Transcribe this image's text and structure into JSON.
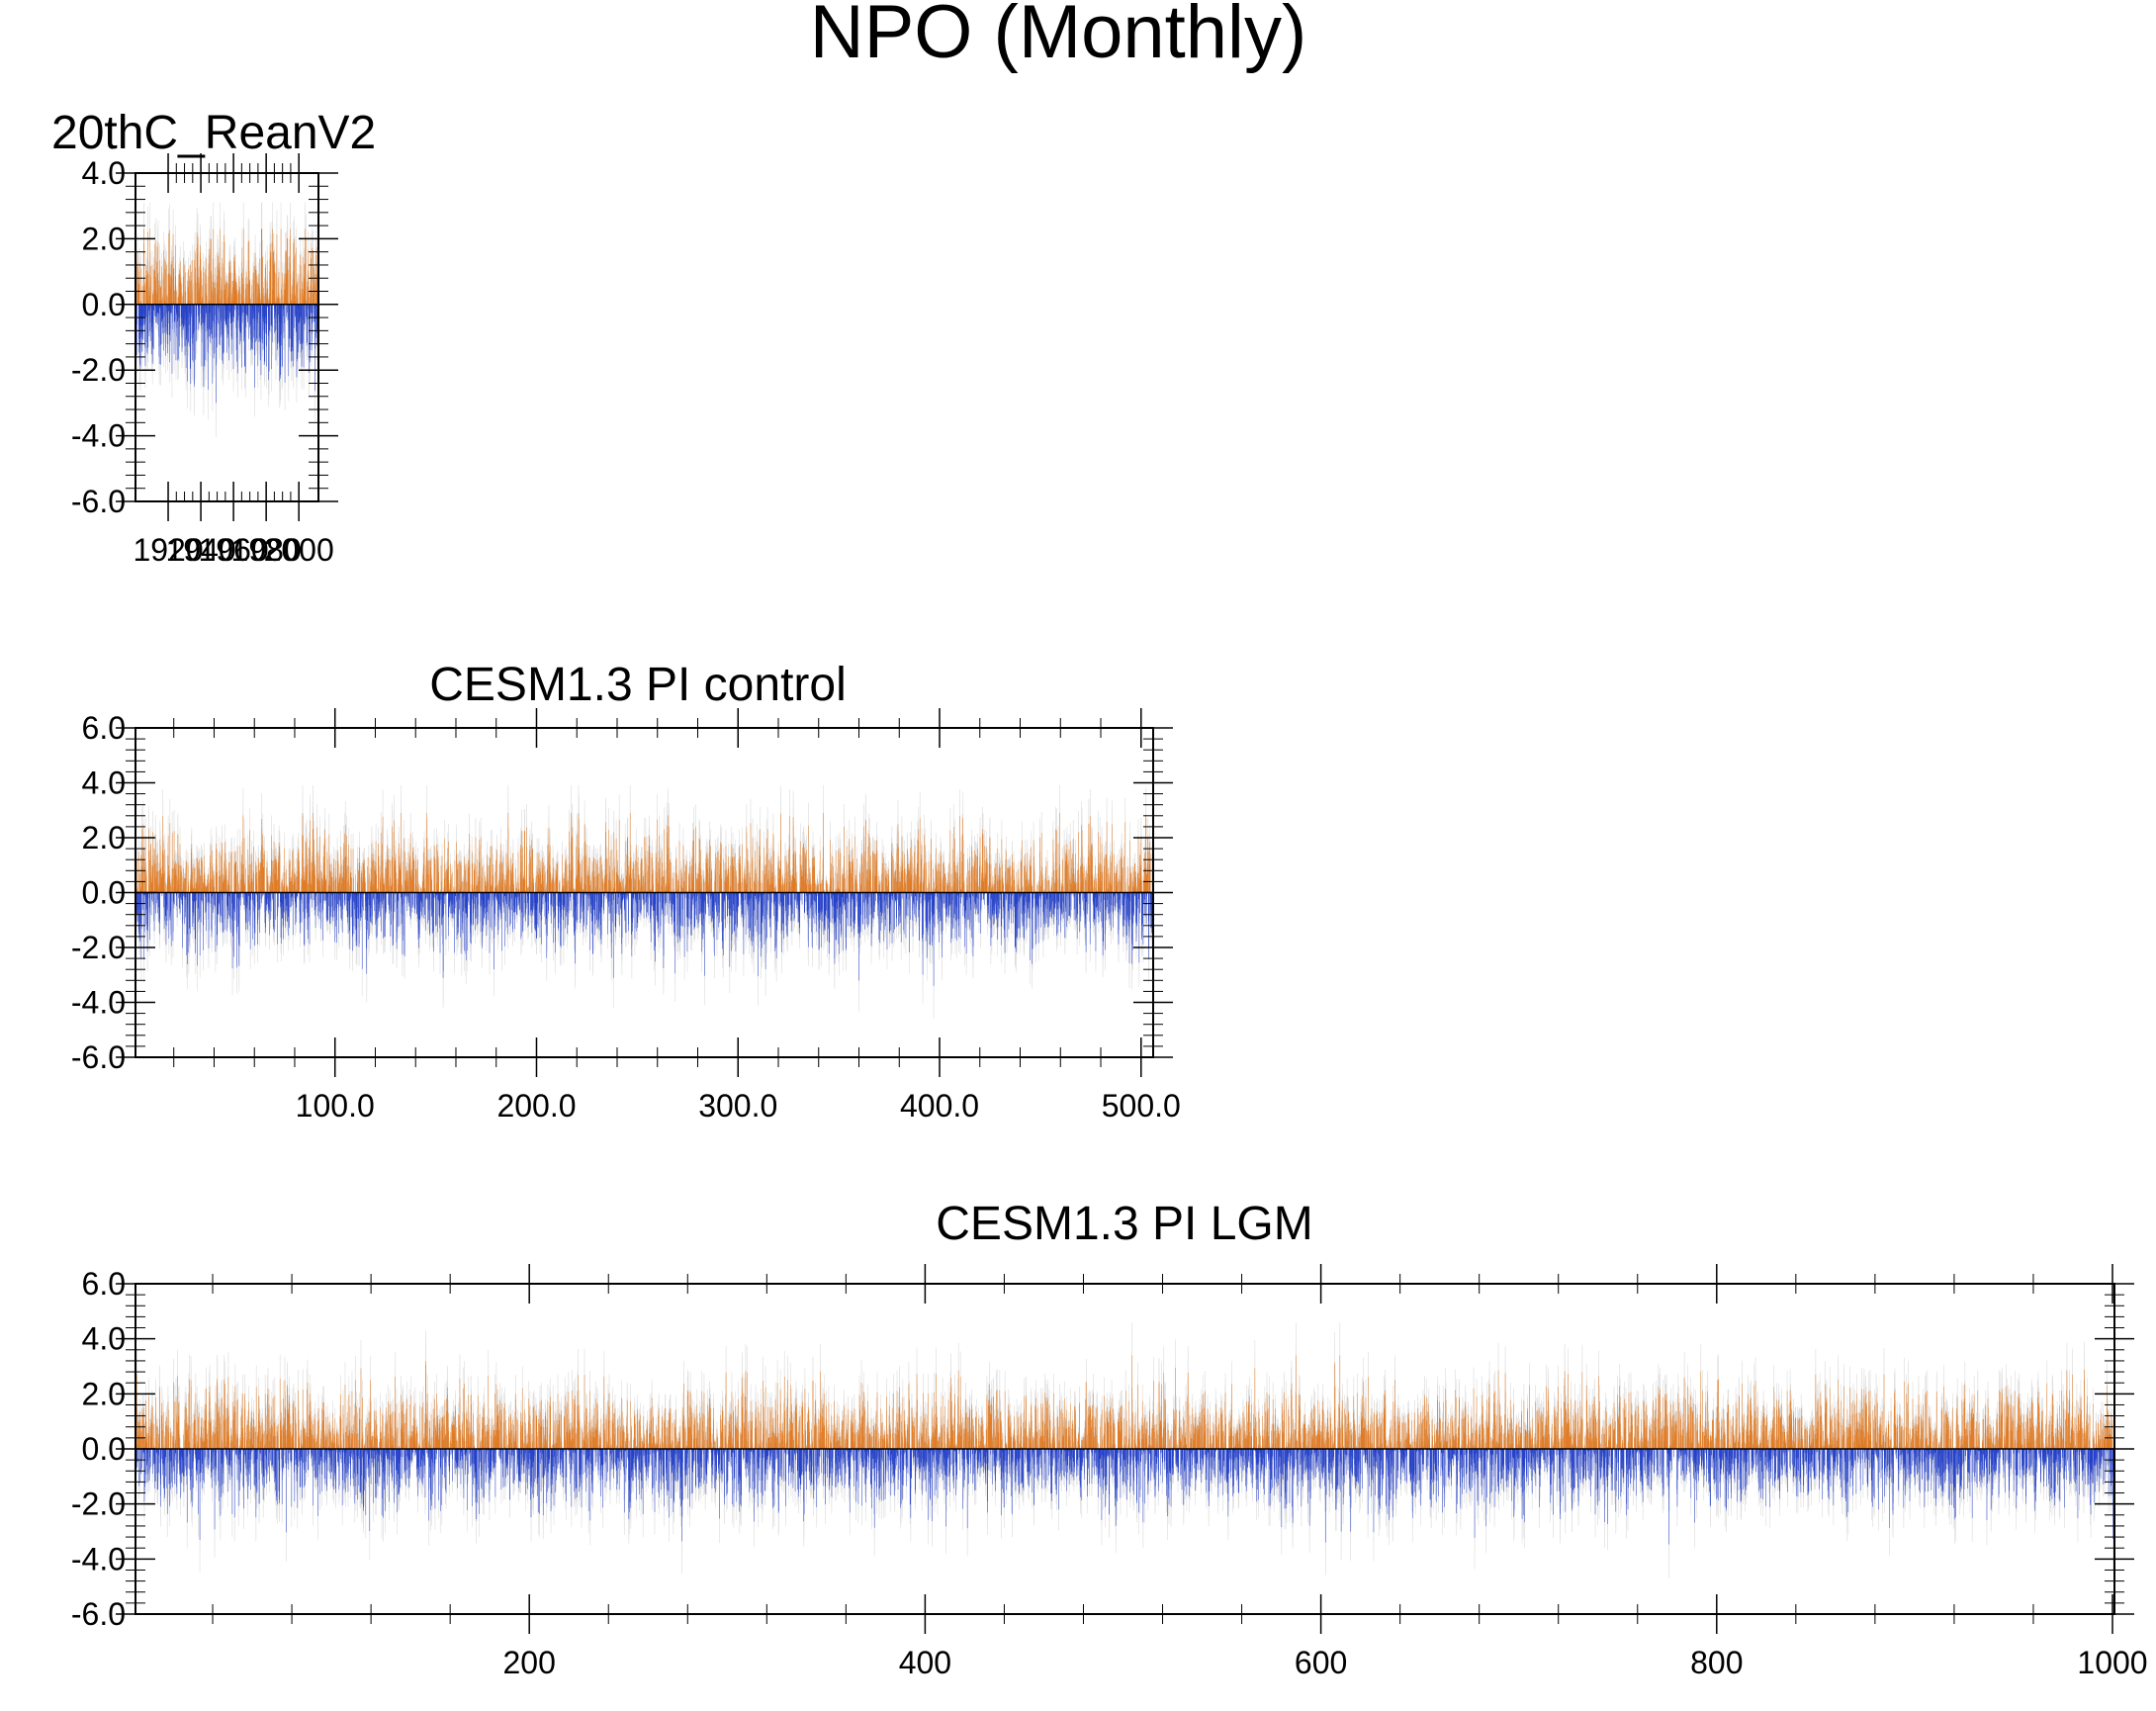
{
  "figure": {
    "title": "NPO (Monthly)"
  },
  "colors": {
    "positive": "#e07b24",
    "negative": "#2541c9",
    "background_trace": "#cfcfcf",
    "axis": "#000000"
  },
  "chart_data": [
    {
      "type": "bar",
      "title": "20thC_ReanV2",
      "xlabel": "",
      "ylabel": "",
      "x_range": [
        1900,
        2012
      ],
      "ylim": [
        -6.0,
        4.0
      ],
      "y_ticks": [
        -6.0,
        -4.0,
        -2.0,
        0.0,
        2.0,
        4.0
      ],
      "y_tick_labels": [
        "-6.0",
        "-4.0",
        "-2.0",
        "0.0",
        "2.0",
        "4.0"
      ],
      "x_ticks": [
        1920,
        1940,
        1960,
        1980,
        2000
      ],
      "x_tick_labels": [
        "1920",
        "1940",
        "1960",
        "1980",
        "2000"
      ],
      "grid": false,
      "series": [
        {
          "n_values": 1344,
          "amplitude_sd": 1.0,
          "max": 2.3,
          "min": -3.0,
          "seed": 11
        }
      ]
    },
    {
      "type": "bar",
      "title": "CESM1.3 PI control",
      "xlabel": "",
      "ylabel": "",
      "x_range": [
        1,
        506
      ],
      "ylim": [
        -6.0,
        6.0
      ],
      "y_ticks": [
        -6.0,
        -4.0,
        -2.0,
        0.0,
        2.0,
        4.0,
        6.0
      ],
      "y_tick_labels": [
        "-6.0",
        "-4.0",
        "-2.0",
        "0.0",
        "2.0",
        "4.0",
        "6.0"
      ],
      "x_ticks": [
        100,
        200,
        300,
        400,
        500
      ],
      "x_tick_labels": [
        "100.0",
        "200.0",
        "300.0",
        "400.0",
        "500.0"
      ],
      "grid": false,
      "series": [
        {
          "n_values": 6072,
          "amplitude_sd": 1.0,
          "max": 2.9,
          "min": -3.4,
          "seed": 23
        }
      ]
    },
    {
      "type": "bar",
      "title": "CESM1.3 PI LGM",
      "xlabel": "",
      "ylabel": "",
      "x_range": [
        1,
        1001
      ],
      "ylim": [
        -6.0,
        6.0
      ],
      "y_ticks": [
        -6.0,
        -4.0,
        -2.0,
        0.0,
        2.0,
        4.0,
        6.0
      ],
      "y_tick_labels": [
        "-6.0",
        "-4.0",
        "-2.0",
        "0.0",
        "2.0",
        "4.0",
        "6.0"
      ],
      "x_ticks": [
        200,
        400,
        600,
        800,
        1000
      ],
      "x_tick_labels": [
        "200",
        "400",
        "600",
        "800",
        "1000"
      ],
      "grid": false,
      "series": [
        {
          "n_values": 12012,
          "amplitude_sd": 1.0,
          "max": 3.4,
          "min": -3.5,
          "seed": 47
        }
      ]
    }
  ]
}
